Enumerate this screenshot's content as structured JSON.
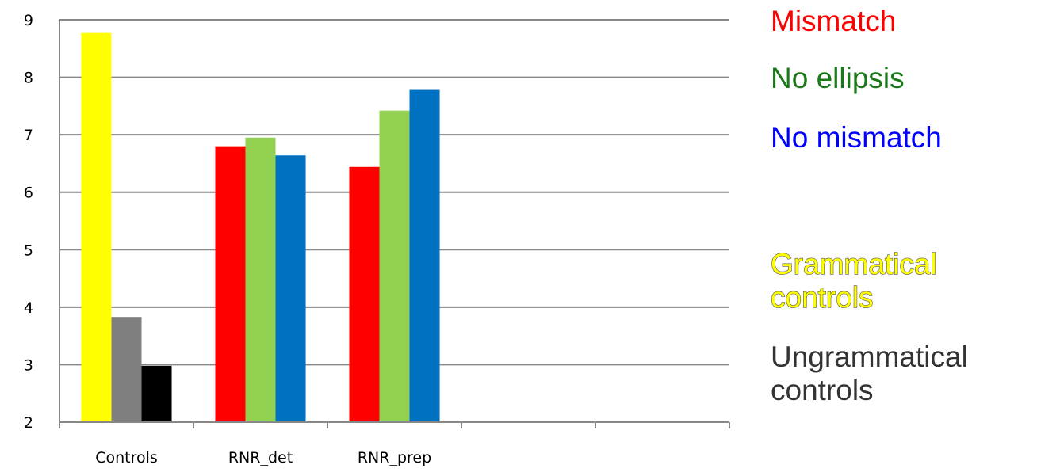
{
  "chart_data": {
    "type": "bar",
    "title": "",
    "xlabel": "",
    "ylabel": "",
    "ylim": [
      2,
      9
    ],
    "yticks": [
      "2",
      "3",
      "4",
      "5",
      "6",
      "7",
      "8",
      "9"
    ],
    "grid": true,
    "categories": [
      "Controls",
      "RNR_det",
      "RNR_prep",
      "",
      ""
    ],
    "groups": [
      {
        "category": "Controls",
        "bars": [
          {
            "series": "Grammatical controls",
            "value": 8.77
          },
          {
            "series": "Ungrammatical controls (gray)",
            "value": 3.83
          },
          {
            "series": "Ungrammatical controls (black)",
            "value": 2.98
          }
        ]
      },
      {
        "category": "RNR_det",
        "bars": [
          {
            "series": "Mismatch",
            "value": 6.8
          },
          {
            "series": "No ellipsis",
            "value": 6.95
          },
          {
            "series": "No mismatch",
            "value": 6.64
          }
        ]
      },
      {
        "category": "RNR_prep",
        "bars": [
          {
            "series": "Mismatch",
            "value": 6.44
          },
          {
            "series": "No ellipsis",
            "value": 7.42
          },
          {
            "series": "No mismatch",
            "value": 7.78
          }
        ]
      }
    ],
    "colors": {
      "Mismatch": "#ff0000",
      "No ellipsis": "#92d050",
      "No mismatch": "#0070c0",
      "Grammatical controls": "#ffff00",
      "Ungrammatical controls (gray)": "#7f7f7f",
      "Ungrammatical controls (black)": "#000000"
    },
    "legend_placement": "right"
  },
  "legend": [
    {
      "label": "Mismatch",
      "color": "#ff0000"
    },
    {
      "label": "No ellipsis",
      "color": "#1a7a1a"
    },
    {
      "label": "No mismatch",
      "color": "#0000ff"
    },
    {
      "label": "Grammatical",
      "color": "#ffff00"
    },
    {
      "label": "controls",
      "color": "#ffff00"
    },
    {
      "label": "Ungrammatical",
      "color": "#333333"
    },
    {
      "label": "controls",
      "color": "#333333"
    }
  ]
}
